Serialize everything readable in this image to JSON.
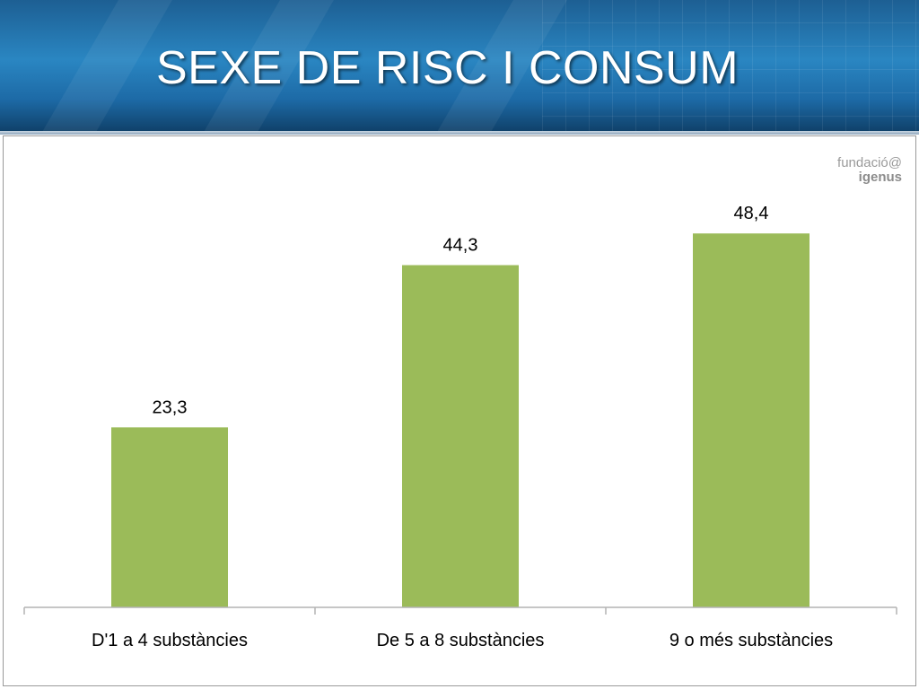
{
  "slide": {
    "title": "SEXE DE RISC I CONSUM",
    "logo": {
      "line1": "fundació@",
      "line2": "igenus"
    }
  },
  "colors": {
    "bar": "#9bbb59",
    "header": "#1f6fab"
  },
  "chart_data": {
    "type": "bar",
    "categories": [
      "D'1 a 4 substàncies",
      "De 5 a 8 substàncies",
      "9 o més substàncies"
    ],
    "values": [
      23.3,
      44.3,
      48.4
    ],
    "data_labels": [
      "23,3",
      "44,3",
      "48,4"
    ],
    "title": "",
    "xlabel": "",
    "ylabel": "",
    "ylim": [
      0,
      54
    ],
    "grid": false,
    "legend": "none"
  }
}
